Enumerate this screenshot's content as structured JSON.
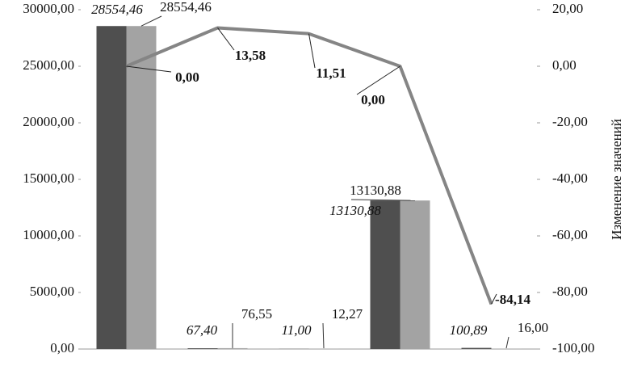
{
  "chart_data": {
    "type": "bar",
    "categories": [
      null,
      null,
      null,
      null,
      null
    ],
    "series": [
      {
        "color": "#4f4f4f",
        "values": [
          28554.46,
          67.4,
          11.0,
          13130.88,
          100.89
        ],
        "value_labels": [
          "28554,46",
          "67,40",
          "11,00",
          "13130,88",
          "100,89"
        ]
      },
      {
        "color": "#a3a3a3",
        "values": [
          28554.46,
          76.55,
          12.27,
          13130.88,
          16.0
        ],
        "value_labels": [
          "28554,46",
          "76,55",
          "12,27",
          "13130,88",
          "16,00"
        ]
      },
      {
        "type": "line",
        "axis": "y2",
        "color": "#858585",
        "values": [
          0.0,
          13.58,
          11.51,
          0.0,
          -84.14
        ],
        "value_labels": [
          "0,00",
          "13,58",
          "11,51",
          "0,00",
          "-84,14"
        ]
      }
    ],
    "ylim": [
      0,
      30000
    ],
    "yticks": [
      {
        "value": 0,
        "label": "0,00"
      },
      {
        "value": 5000,
        "label": "5000,00"
      },
      {
        "value": 10000,
        "label": "10000,00"
      },
      {
        "value": 15000,
        "label": "15000,00"
      },
      {
        "value": 20000,
        "label": "20000,00"
      },
      {
        "value": 25000,
        "label": "25000,00"
      },
      {
        "value": 30000,
        "label": "30000,00"
      }
    ],
    "y2lim": [
      -100,
      20
    ],
    "y2ticks": [
      {
        "value": -100,
        "label": "-100,00"
      },
      {
        "value": -80,
        "label": "-80,00"
      },
      {
        "value": -60,
        "label": "-60,00"
      },
      {
        "value": -40,
        "label": "-40,00"
      },
      {
        "value": -20,
        "label": "-20,00"
      },
      {
        "value": 0,
        "label": "0,00"
      },
      {
        "value": 20,
        "label": "20,00"
      }
    ],
    "y2label": "Изменение значений"
  }
}
